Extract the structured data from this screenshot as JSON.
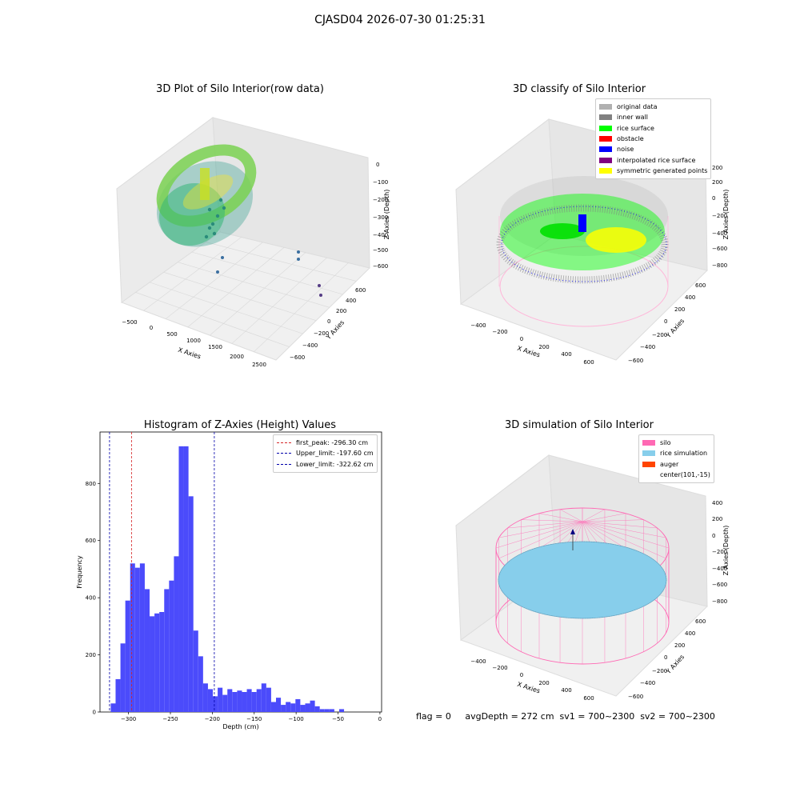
{
  "figure_title": "CJASD04 2026-07-30 01:25:31",
  "footer_text": "flag = 0     avgDepth = 272 cm  sv1 = 700~2300  sv2 = 700~2300",
  "colors": {
    "hist_bar": "#4b4bfb",
    "first_peak": "#d62728",
    "limit": "#0000aa",
    "viridis_mid": "#3fb17c",
    "silo": "#ff69b4",
    "rice_sim": "#87ceeb",
    "auger": "#ff4500"
  },
  "chart_data": [
    {
      "type": "scatter3d",
      "title": "3D Plot of Silo Interior(row data)",
      "xlabel": "X Axies",
      "ylabel": "Y Axies",
      "zlabel": "Z Axies (Depth)",
      "x_ticks": [
        "−500",
        "0",
        "500",
        "1000",
        "1500",
        "2000",
        "2500"
      ],
      "y_ticks": [
        "−600",
        "−400",
        "−200",
        "0",
        "200",
        "400",
        "600"
      ],
      "z_ticks": [
        "0",
        "−100",
        "−200",
        "−300",
        "−400",
        "−500",
        "−600"
      ],
      "colormap": "viridis"
    },
    {
      "type": "scatter3d",
      "title": "3D classify of Silo Interior",
      "xlabel": "X Axies",
      "ylabel": "Y Axies",
      "zlabel": "Z Axies (Depth)",
      "x_ticks": [
        "−400",
        "−200",
        "0",
        "200",
        "400",
        "600"
      ],
      "y_ticks": [
        "−600",
        "−400",
        "−200",
        "0",
        "200",
        "400",
        "600"
      ],
      "z_ticks": [
        "200",
        "0",
        "−200",
        "−400",
        "−600",
        "−800"
      ],
      "legend_position": "top-right",
      "legend": [
        {
          "label": "original data",
          "color": "#b0b0b0"
        },
        {
          "label": "inner wall",
          "color": "#808080"
        },
        {
          "label": "rice surface",
          "color": "#00ff00"
        },
        {
          "label": "obstacle",
          "color": "#ff0000"
        },
        {
          "label": "noise",
          "color": "#0000ff"
        },
        {
          "label": "interpolated rice surface",
          "color": "#800080"
        },
        {
          "label": "symmetric generated points",
          "color": "#ffff00"
        }
      ]
    },
    {
      "type": "bar",
      "title": "Histogram of Z-Axies (Height) Values",
      "xlabel": "Depth (cm)",
      "ylabel": "Frequency",
      "xlim": [
        -334,
        2
      ],
      "ylim": [
        0,
        980
      ],
      "x_ticks": [
        -300,
        -250,
        -200,
        -150,
        -100,
        -50,
        0
      ],
      "y_ticks": [
        0,
        200,
        400,
        600,
        800
      ],
      "bin_start": -327,
      "bin_width": 5.8,
      "values": [
        0,
        30,
        115,
        240,
        390,
        520,
        505,
        520,
        430,
        335,
        345,
        350,
        430,
        460,
        545,
        930,
        930,
        755,
        285,
        195,
        100,
        80,
        55,
        85,
        60,
        80,
        70,
        75,
        70,
        80,
        70,
        80,
        100,
        85,
        35,
        50,
        25,
        35,
        30,
        45,
        25,
        30,
        40,
        20,
        10,
        10,
        10,
        0,
        10
      ],
      "lines": [
        {
          "name": "first_peak: -296.30 cm",
          "x": -296.3,
          "color": "#d62728"
        },
        {
          "name": "Upper_limit: -197.60 cm",
          "x": -197.6,
          "color": "#0000aa"
        },
        {
          "name": "Lower_limit: -322.62 cm",
          "x": -322.62,
          "color": "#0000aa"
        }
      ],
      "legend_position": "top-right"
    },
    {
      "type": "surface3d",
      "title": "3D simulation of Silo Interior",
      "xlabel": "X Axies",
      "ylabel": "Y Axies",
      "zlabel": "Z Axies (Depth)",
      "x_ticks": [
        "−400",
        "−200",
        "0",
        "200",
        "400",
        "600"
      ],
      "y_ticks": [
        "−600",
        "−400",
        "−200",
        "0",
        "200",
        "400",
        "600"
      ],
      "z_ticks": [
        "400",
        "200",
        "0",
        "−200",
        "−400",
        "−600",
        "−800"
      ],
      "legend_position": "top-right",
      "legend": [
        {
          "label": "silo",
          "color": "#ff69b4"
        },
        {
          "label": "rice simulation",
          "color": "#87ceeb"
        },
        {
          "label": "auger",
          "color": "#ff4500"
        },
        {
          "label": "center(101,-15)",
          "color": ""
        }
      ]
    }
  ]
}
